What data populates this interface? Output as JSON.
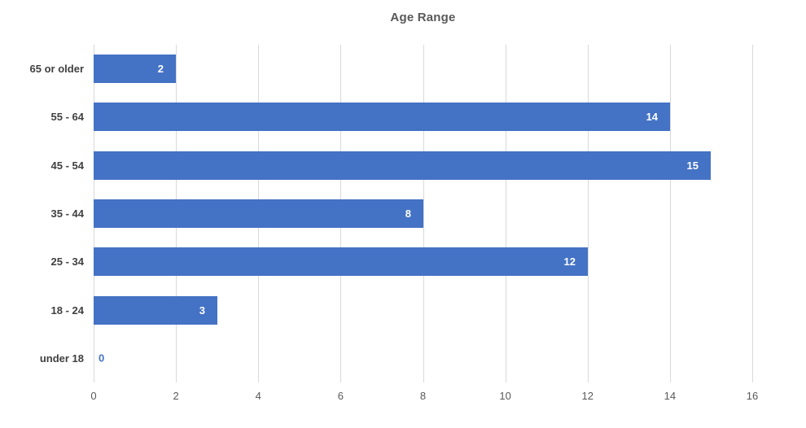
{
  "chart_data": {
    "type": "bar",
    "orientation": "horizontal",
    "title": "Age Range",
    "categories": [
      "65 or older",
      "55 - 64",
      "45 - 54",
      "35 - 44",
      "25 - 34",
      "18 - 24",
      "under 18"
    ],
    "values": [
      2,
      14,
      15,
      8,
      12,
      3,
      0
    ],
    "xlabel": "",
    "ylabel": "",
    "xlim": [
      0,
      16
    ],
    "xticks": [
      0,
      2,
      4,
      6,
      8,
      10,
      12,
      14,
      16
    ],
    "grid": true,
    "legend": false,
    "data_labels": "inside-end",
    "colors": {
      "bar": "#4472C4",
      "data_label": "#FFFFFF",
      "zero_label": "#4472C4",
      "title": "#595959",
      "category_label": "#404040",
      "tick_label": "#595959",
      "gridline": "#D9D9D9",
      "background": "#FFFFFF"
    }
  }
}
